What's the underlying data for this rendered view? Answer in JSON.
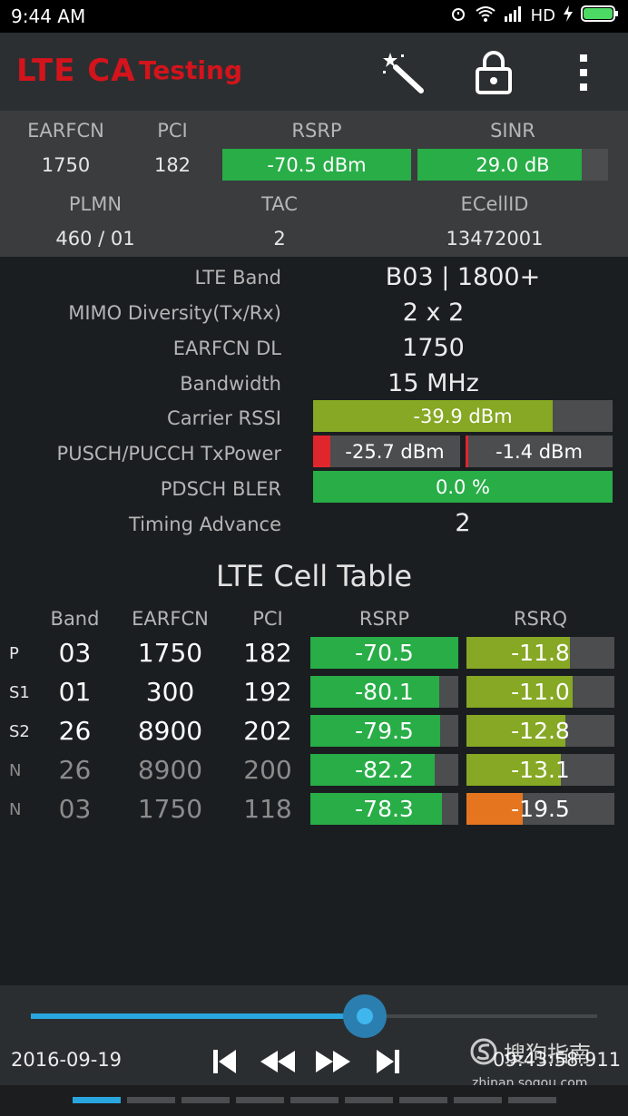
{
  "status_bar": {
    "time": "9:44 AM",
    "network": "HD"
  },
  "app_bar": {
    "title": "LTE CA",
    "subtitle": "Testing"
  },
  "serving": {
    "headers": {
      "earfcn": "EARFCN",
      "pci": "PCI",
      "rsrp": "RSRP",
      "sinr": "SINR",
      "plmn": "PLMN",
      "tac": "TAC",
      "ecellid": "ECellID"
    },
    "earfcn": "1750",
    "pci": "182",
    "rsrp": {
      "text": "-70.5 dBm",
      "fill": 1.0
    },
    "sinr": {
      "text": "29.0 dB",
      "fill": 0.86
    },
    "plmn": "460 / 01",
    "tac": "2",
    "ecellid": "13472001"
  },
  "info": {
    "lte_band": {
      "label": "LTE Band",
      "value": "B03 | 1800+"
    },
    "mimo": {
      "label": "MIMO Diversity(Tx/Rx)",
      "value": "2 x 2"
    },
    "earfcn_dl": {
      "label": "EARFCN DL",
      "value": "1750"
    },
    "bandwidth": {
      "label": "Bandwidth",
      "value": "15 MHz"
    },
    "carrier_rssi": {
      "label": "Carrier RSSI",
      "value": "-39.9 dBm",
      "fill": 0.8
    },
    "txpower": {
      "label": "PUSCH/PUCCH TxPower",
      "pusch": "-25.7 dBm",
      "pusch_fill": 0.12,
      "pucch": "-1.4 dBm",
      "pucch_fill": 0.02
    },
    "bler": {
      "label": "PDSCH BLER",
      "value": "0.0 %",
      "fill": 1.0
    },
    "timing_advance": {
      "label": "Timing Advance",
      "value": "2"
    }
  },
  "cell_table": {
    "title": "LTE Cell Table",
    "headers": {
      "band": "Band",
      "earfcn": "EARFCN",
      "pci": "PCI",
      "rsrp": "RSRP",
      "rsrq": "RSRQ"
    },
    "rows": [
      {
        "tag": "P",
        "band": "03",
        "earfcn": "1750",
        "pci": "182",
        "rsrp": "-70.5",
        "rsrp_fill": 1.0,
        "rsrq": "-11.8",
        "rsrq_fill": 0.7,
        "rsrq_color": "olive",
        "dim": false
      },
      {
        "tag": "S1",
        "band": "01",
        "earfcn": "300",
        "pci": "192",
        "rsrp": "-80.1",
        "rsrp_fill": 0.87,
        "rsrq": "-11.0",
        "rsrq_fill": 0.72,
        "rsrq_color": "olive",
        "dim": false
      },
      {
        "tag": "S2",
        "band": "26",
        "earfcn": "8900",
        "pci": "202",
        "rsrp": "-79.5",
        "rsrp_fill": 0.88,
        "rsrq": "-12.8",
        "rsrq_fill": 0.67,
        "rsrq_color": "olive",
        "dim": false
      },
      {
        "tag": "N",
        "band": "26",
        "earfcn": "8900",
        "pci": "200",
        "rsrp": "-82.2",
        "rsrp_fill": 0.84,
        "rsrq": "-13.1",
        "rsrq_fill": 0.64,
        "rsrq_color": "olive",
        "dim": true
      },
      {
        "tag": "N",
        "band": "03",
        "earfcn": "1750",
        "pci": "118",
        "rsrp": "-78.3",
        "rsrp_fill": 0.89,
        "rsrq": "-19.5",
        "rsrq_fill": 0.38,
        "rsrq_color": "orange",
        "dim": true
      }
    ]
  },
  "player": {
    "date": "2016-09-19",
    "time": "09:43:58.911",
    "progress": 0.59
  },
  "pager": {
    "pages": 9,
    "active": 0
  },
  "watermark": {
    "text": "搜狗指南",
    "url": "zhinan.sogou.com"
  },
  "colors": {
    "accent": "#d3141c",
    "good": "#28ad47",
    "mid": "#86a824",
    "bad": "#e5761f",
    "progress": "#2aa6df"
  }
}
